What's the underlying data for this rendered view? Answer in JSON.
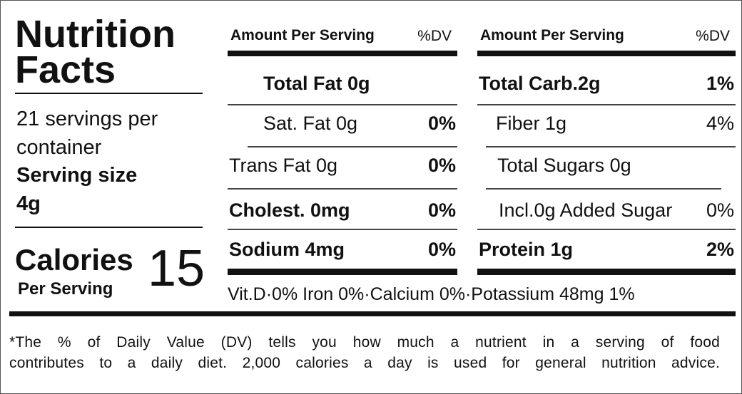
{
  "title": "Nutrition Facts",
  "servings_per_container": "21 servings per container",
  "serving_size_label": "Serving size",
  "serving_size": "4g",
  "calories_label": "Calories",
  "calories_sub": "Per Serving",
  "calories": "15",
  "left_table": {
    "header": "Amount Per Serving",
    "dv_header": "%DV",
    "rows": [
      {
        "label": "Total Fat 0g"
      },
      {
        "label": "Sat. Fat 0g",
        "dv": "0%"
      },
      {
        "label": "Trans Fat 0g",
        "dv": "0%"
      },
      {
        "label": "Cholest. 0mg",
        "dv": "0%"
      },
      {
        "label": "Sodium 4mg",
        "dv": "0%"
      }
    ]
  },
  "right_table": {
    "header": "Amount Per Serving",
    "dv_header": "%DV",
    "rows": [
      {
        "label": "Total Carb.2g",
        "dv": "1%"
      },
      {
        "label": "Fiber 1g",
        "dv": "4%"
      },
      {
        "label": "Total Sugars  0g"
      },
      {
        "label": "Incl.0g Added Sugar",
        "dv": "0%"
      },
      {
        "label": "Protein 1g",
        "dv": "2%"
      }
    ]
  },
  "vitamins": "Vit.D·0%  Iron 0%·Calcium 0%·Potassium 48mg 1%",
  "footnote": [
    "*The % of Daily Value (DV) tells you how much a nutrient in a serving of food",
    "contributes to a daily diet. 2,000 calories a day is used for general nutrition advice."
  ]
}
